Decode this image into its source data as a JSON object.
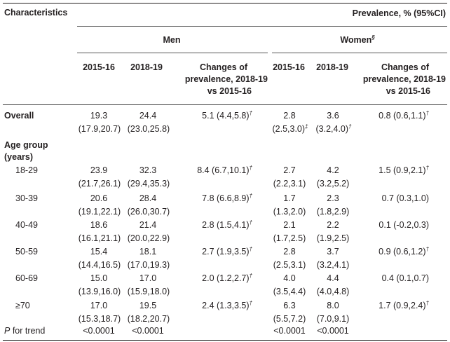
{
  "header": {
    "characteristics": "Characteristics",
    "prevalence": "Prevalence, % (95%CI)",
    "men": "Men",
    "women": "Women",
    "women_mark": "§",
    "col_2015": "2015-16",
    "col_2018": "2018-19",
    "changes_l1": "Changes of",
    "changes_l2": "prevalence, 2018-19",
    "changes_l3": "vs 2015-16"
  },
  "overall": {
    "label": "Overall",
    "men_2015": "19.3",
    "men_2015_ci": "(17.9,20.7)",
    "men_2018": "24.4",
    "men_2018_ci": "(23.0,25.8)",
    "men_change": "5.1 (4.4,5.8)",
    "men_change_mark": "†",
    "women_2015": "2.8",
    "women_2015_ci": "(2.5,3.0)",
    "women_2015_mark": "‡",
    "women_2018": "3.6",
    "women_2018_ci": "(3.2,4.0)",
    "women_2018_mark": "†",
    "women_change": "0.8 (0.6,1.1)",
    "women_change_mark": "†"
  },
  "age_group_label_l1": "Age group",
  "age_group_label_l2": "(years)",
  "age_rows": [
    {
      "label": "18-29",
      "men_2015": "23.9",
      "men_2015_ci": "(21.7,26.1)",
      "men_2018": "32.3",
      "men_2018_ci": "(29.4,35.3)",
      "men_change": "8.4 (6.7,10.1)",
      "men_change_mark": "†",
      "women_2015": "2.7",
      "women_2015_ci": "(2.2,3.1)",
      "women_2018": "4.2",
      "women_2018_ci": "(3.2,5.2)",
      "women_change": "1.5 (0.9,2.1)",
      "women_change_mark": "†"
    },
    {
      "label": "30-39",
      "men_2015": "20.6",
      "men_2015_ci": "(19.1,22.1)",
      "men_2018": "28.4",
      "men_2018_ci": "(26.0,30.7)",
      "men_change": "7.8 (6.6,8.9)",
      "men_change_mark": "†",
      "women_2015": "1.7",
      "women_2015_ci": "(1.3,2.0)",
      "women_2018": "2.3",
      "women_2018_ci": "(1.8,2.9)",
      "women_change": "0.7 (0.3,1.0)",
      "women_change_mark": ""
    },
    {
      "label": "40-49",
      "men_2015": "18.6",
      "men_2015_ci": "(16.1,21.1)",
      "men_2018": "21.4",
      "men_2018_ci": "(20.0,22.9)",
      "men_change": "2.8 (1.5,4.1)",
      "men_change_mark": "†",
      "women_2015": "2.1",
      "women_2015_ci": "(1.7,2.5)",
      "women_2018": "2.2",
      "women_2018_ci": "(1.9,2.5)",
      "women_change": "0.1 (-0.2,0.3)",
      "women_change_mark": ""
    },
    {
      "label": "50-59",
      "men_2015": "15.4",
      "men_2015_ci": "(14.4,16.5)",
      "men_2018": "18.1",
      "men_2018_ci": "(17.0,19.3)",
      "men_change": "2.7 (1.9,3.5)",
      "men_change_mark": "†",
      "women_2015": "2.8",
      "women_2015_ci": "(2.5,3.1)",
      "women_2018": "3.7",
      "women_2018_ci": "(3.2,4.1)",
      "women_change": "0.9 (0.6,1.2)",
      "women_change_mark": "†"
    },
    {
      "label": "60-69",
      "men_2015": "15.0",
      "men_2015_ci": "(13.9,16.0)",
      "men_2018": "17.0",
      "men_2018_ci": "(15.9,18.0)",
      "men_change": "2.0 (1.2,2.7)",
      "men_change_mark": "†",
      "women_2015": "4.0",
      "women_2015_ci": "(3.5,4.4)",
      "women_2018": "4.4",
      "women_2018_ci": "(4.0,4.8)",
      "women_change": "0.4 (0.1,0.7)",
      "women_change_mark": ""
    },
    {
      "label": "≥70",
      "men_2015": "17.0",
      "men_2015_ci": "(15.3,18.7)",
      "men_2018": "19.5",
      "men_2018_ci": "(18.2,20.7)",
      "men_change": "2.4 (1.3,3.5)",
      "men_change_mark": "†",
      "women_2015": "6.3",
      "women_2015_ci": "(5.5,7.2)",
      "women_2018": "8.0",
      "women_2018_ci": "(7.0,9.1)",
      "women_change": "1.7 (0.9,2.4)",
      "women_change_mark": "†"
    }
  ],
  "p_trend": {
    "label_p": "P",
    "label_rest": " for trend",
    "men_2015": "<0.0001",
    "men_2018": "<0.0001",
    "women_2015": "<0.0001",
    "women_2018": "<0.0001"
  }
}
